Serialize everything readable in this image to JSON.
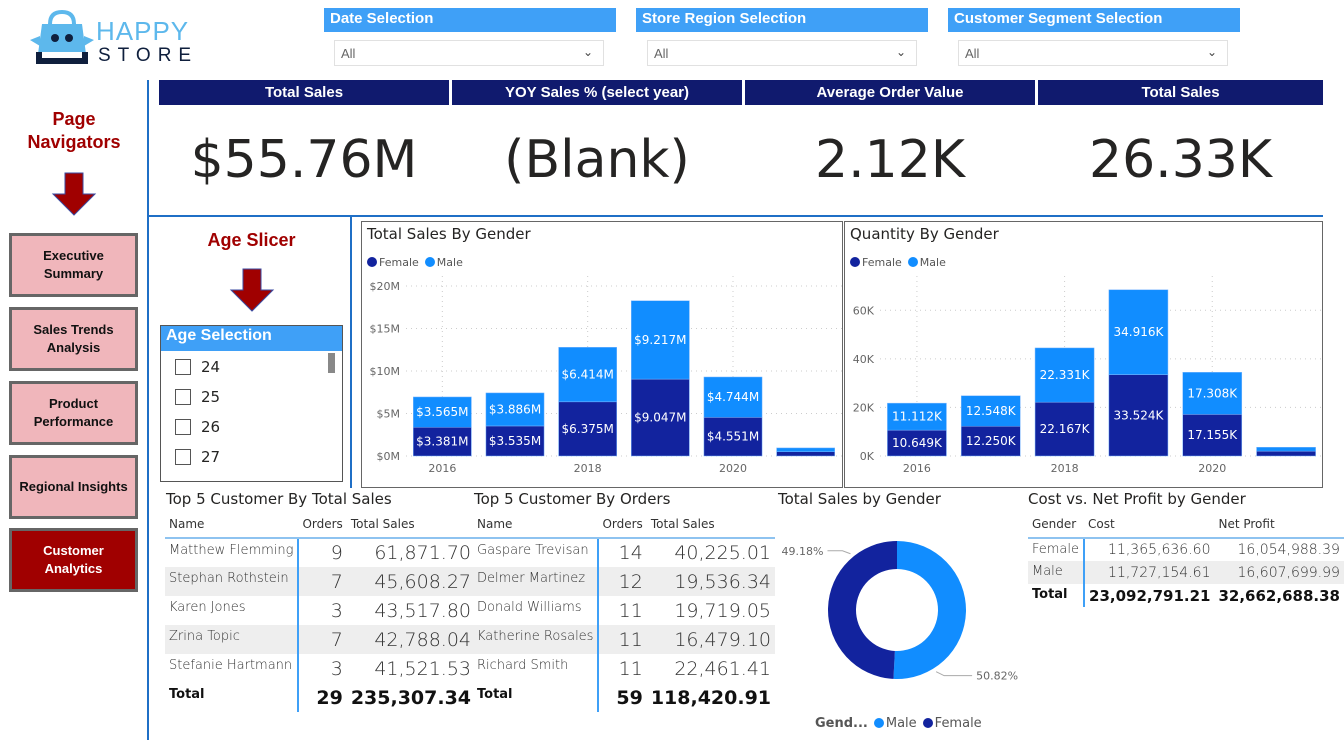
{
  "logo": {
    "line1": "HAPPY",
    "line2": "STORE"
  },
  "filters": [
    {
      "label": "Date Selection",
      "value": "All"
    },
    {
      "label": "Store Region Selection",
      "value": "All"
    },
    {
      "label": "Customer Segment Selection",
      "value": "All"
    }
  ],
  "kpis": [
    {
      "label": "Total Sales",
      "value": "$55.76M"
    },
    {
      "label": "YOY Sales % (select year)",
      "value": "(Blank)"
    },
    {
      "label": "Average Order Value",
      "value": "2.12K"
    },
    {
      "label": "Total Sales",
      "value": "26.33K"
    }
  ],
  "nav": {
    "title": "Page Navigators",
    "items": [
      {
        "label": "Executive Summary",
        "active": false
      },
      {
        "label": "Sales Trends Analysis",
        "active": false
      },
      {
        "label": "Product Performance",
        "active": false
      },
      {
        "label": "Regional Insights",
        "active": false
      },
      {
        "label": "Customer Analytics",
        "active": true
      }
    ]
  },
  "age": {
    "title": "Age Slicer",
    "header": "Age Selection",
    "items": [
      "24",
      "25",
      "26",
      "27"
    ]
  },
  "colors": {
    "female": "#12239e",
    "male": "#118dff",
    "header": "#101a6e",
    "accent": "#3fa0f7",
    "nav_active": "#a00000",
    "nav": "#f0b6bb"
  },
  "chart_data": [
    {
      "type": "bar",
      "stacked": true,
      "title": "Total Sales By Gender",
      "categories": [
        "2016",
        "2017",
        "2018",
        "2019",
        "2020",
        "2021"
      ],
      "tick_labels": [
        "2016",
        "",
        "2018",
        "",
        "2020",
        ""
      ],
      "yticks": [
        "$0M",
        "$5M",
        "$10M",
        "$15M",
        "$20M"
      ],
      "ylim": [
        0,
        20
      ],
      "legend": [
        "Female",
        "Male"
      ],
      "legend_position": "top-left",
      "grid": true,
      "series": [
        {
          "name": "Female",
          "values": [
            3.381,
            3.535,
            6.375,
            9.047,
            4.551,
            0.5
          ],
          "labels": [
            "$3.381M",
            "$3.535M",
            "$6.375M",
            "$9.047M",
            "$4.551M",
            ""
          ]
        },
        {
          "name": "Male",
          "values": [
            3.565,
            3.886,
            6.414,
            9.217,
            4.744,
            0.45
          ],
          "labels": [
            "$3.565M",
            "$3.886M",
            "$6.414M",
            "$9.217M",
            "$4.744M",
            ""
          ]
        }
      ]
    },
    {
      "type": "bar",
      "stacked": true,
      "title": "Quantity By Gender",
      "categories": [
        "2016",
        "2017",
        "2018",
        "2019",
        "2020",
        "2021"
      ],
      "tick_labels": [
        "2016",
        "",
        "2018",
        "",
        "2020",
        ""
      ],
      "yticks": [
        "0K",
        "20K",
        "40K",
        "60K"
      ],
      "ylim": [
        0,
        70
      ],
      "legend": [
        "Female",
        "Male"
      ],
      "legend_position": "top-left",
      "grid": true,
      "series": [
        {
          "name": "Female",
          "values": [
            10.649,
            12.25,
            22.167,
            33.524,
            17.155,
            2.0
          ],
          "labels": [
            "10.649K",
            "12.250K",
            "22.167K",
            "33.524K",
            "17.155K",
            ""
          ]
        },
        {
          "name": "Male",
          "values": [
            11.112,
            12.548,
            22.331,
            34.916,
            17.308,
            1.6
          ],
          "labels": [
            "11.112K",
            "12.548K",
            "22.331K",
            "34.916K",
            "17.308K",
            ""
          ]
        }
      ]
    },
    {
      "type": "pie",
      "donut": true,
      "title": "Total Sales by Gender",
      "legend_title": "Gend...",
      "legend": [
        "Male",
        "Female"
      ],
      "legend_position": "bottom",
      "slices": [
        {
          "name": "Male",
          "value": 50.82,
          "label": "50.82%"
        },
        {
          "name": "Female",
          "value": 49.18,
          "label": "49.18%"
        }
      ]
    }
  ],
  "top_sales": {
    "title": "Top 5 Customer By Total Sales",
    "headers": [
      "Name",
      "Orders",
      "Total Sales"
    ],
    "rows": [
      [
        "Matthew Flemming",
        "9",
        "61,871.70"
      ],
      [
        "Stephan Rothstein",
        "7",
        "45,608.27"
      ],
      [
        "Karen Jones",
        "3",
        "43,517.80"
      ],
      [
        "Zrina Topic",
        "7",
        "42,788.04"
      ],
      [
        "Stefanie Hartmann",
        "3",
        "41,521.53"
      ]
    ],
    "total": [
      "Total",
      "29",
      "235,307.34"
    ]
  },
  "top_orders": {
    "title": "Top 5 Customer By Orders",
    "headers": [
      "Name",
      "Orders",
      "Total Sales"
    ],
    "rows": [
      [
        "Gaspare Trevisan",
        "14",
        "40,225.01"
      ],
      [
        "Delmer Martinez",
        "12",
        "19,536.34"
      ],
      [
        "Donald Williams",
        "11",
        "19,719.05"
      ],
      [
        "Katherine Rosales",
        "11",
        "16,479.10"
      ],
      [
        "Richard Smith",
        "11",
        "22,461.41"
      ]
    ],
    "total": [
      "Total",
      "59",
      "118,420.91"
    ]
  },
  "cost_profit": {
    "title": "Cost vs. Net Profit by Gender",
    "headers": [
      "Gender",
      "Cost",
      "Net Profit"
    ],
    "rows": [
      [
        "Female",
        "11,365,636.60",
        "16,054,988.39"
      ],
      [
        "Male",
        "11,727,154.61",
        "16,607,699.99"
      ]
    ],
    "total": [
      "Total",
      "23,092,791.21",
      "32,662,688.38"
    ]
  }
}
